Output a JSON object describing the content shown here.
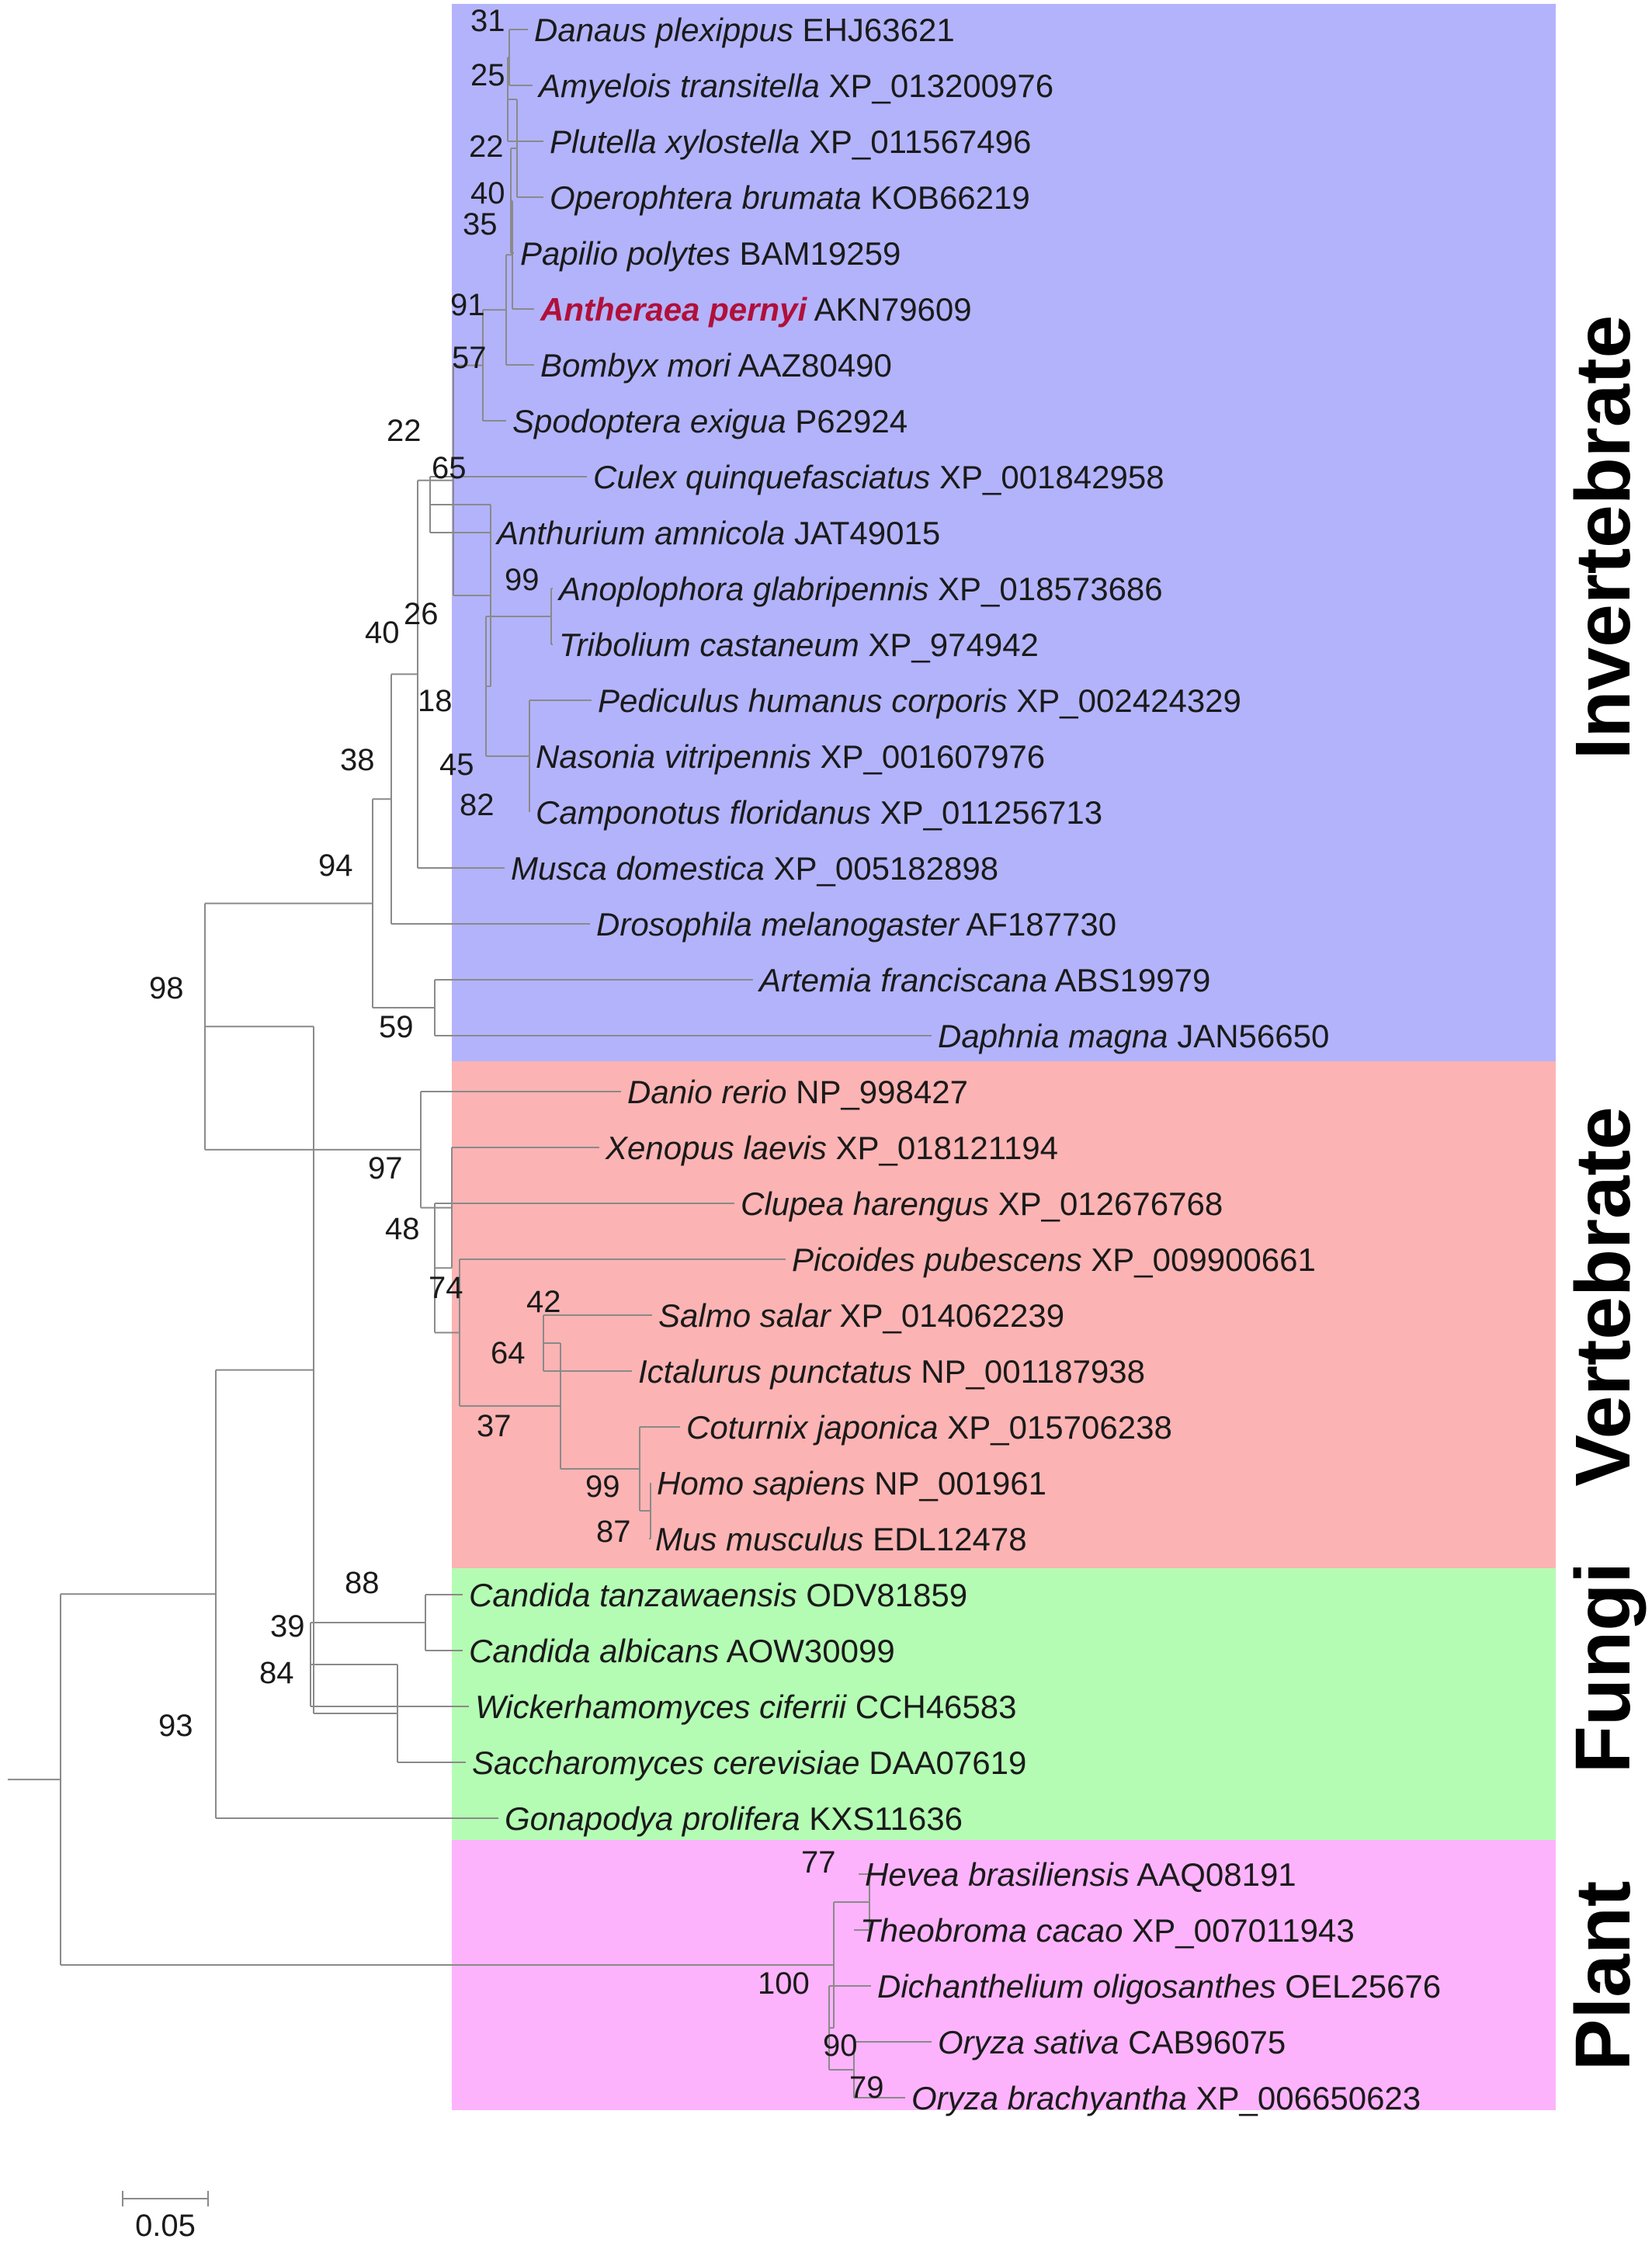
{
  "colors": {
    "invertebrate": "#b3b3fc",
    "vertebrate": "#fcb3b3",
    "fungi": "#b4fcb4",
    "plant": "#fcb3fc",
    "branch": "#8a8a8a",
    "text": "#1a1a1a",
    "highlight": "#b0103a"
  },
  "groups": [
    {
      "id": "invertebrate",
      "label": "Invertebrate"
    },
    {
      "id": "vertebrate",
      "label": "Vertebrate"
    },
    {
      "id": "fungi",
      "label": "Fungi"
    },
    {
      "id": "plant",
      "label": "Plant"
    }
  ],
  "leaves": [
    {
      "species": "Danaus plexippus",
      "accession": "EHJ63621",
      "group": "invertebrate"
    },
    {
      "species": "Amyelois transitella",
      "accession": "XP_013200976",
      "group": "invertebrate"
    },
    {
      "species": "Plutella xylostella",
      "accession": "XP_011567496",
      "group": "invertebrate"
    },
    {
      "species": "Operophtera brumata",
      "accession": "KOB66219",
      "group": "invertebrate"
    },
    {
      "species": "Papilio polytes",
      "accession": "BAM19259",
      "group": "invertebrate"
    },
    {
      "species": "Antheraea pernyi",
      "accession": "AKN79609",
      "group": "invertebrate",
      "highlight": true
    },
    {
      "species": "Bombyx mori",
      "accession": "AAZ80490",
      "group": "invertebrate"
    },
    {
      "species": "Spodoptera exigua",
      "accession": "P62924",
      "group": "invertebrate"
    },
    {
      "species": "Culex quinquefasciatus",
      "accession": "XP_001842958",
      "group": "invertebrate"
    },
    {
      "species": "Anthurium amnicola",
      "accession": "JAT49015",
      "group": "invertebrate"
    },
    {
      "species": "Anoplophora glabripennis",
      "accession": "XP_018573686",
      "group": "invertebrate"
    },
    {
      "species": "Tribolium castaneum",
      "accession": "XP_974942",
      "group": "invertebrate"
    },
    {
      "species": "Pediculus humanus corporis",
      "accession": "XP_002424329",
      "group": "invertebrate"
    },
    {
      "species": "Nasonia vitripennis",
      "accession": "XP_001607976",
      "group": "invertebrate"
    },
    {
      "species": "Camponotus floridanus",
      "accession": "XP_011256713",
      "group": "invertebrate"
    },
    {
      "species": "Musca domestica",
      "accession": "XP_005182898",
      "group": "invertebrate"
    },
    {
      "species": "Drosophila melanogaster",
      "accession": "AF187730",
      "group": "invertebrate"
    },
    {
      "species": "Artemia franciscana",
      "accession": "ABS19979",
      "group": "invertebrate"
    },
    {
      "species": "Daphnia magna",
      "accession": "JAN56650",
      "group": "invertebrate"
    },
    {
      "species": "Danio rerio",
      "accession": "NP_998427",
      "group": "vertebrate"
    },
    {
      "species": "Xenopus laevis",
      "accession": "XP_018121194",
      "group": "vertebrate"
    },
    {
      "species": "Clupea harengus",
      "accession": "XP_012676768",
      "group": "vertebrate"
    },
    {
      "species": "Picoides pubescens",
      "accession": "XP_009900661",
      "group": "vertebrate"
    },
    {
      "species": "Salmo salar",
      "accession": "XP_014062239",
      "group": "vertebrate"
    },
    {
      "species": "Ictalurus punctatus",
      "accession": "NP_001187938",
      "group": "vertebrate"
    },
    {
      "species": "Coturnix japonica",
      "accession": "XP_015706238",
      "group": "vertebrate"
    },
    {
      "species": "Homo sapiens",
      "accession": "NP_001961",
      "group": "vertebrate"
    },
    {
      "species": "Mus musculus",
      "accession": "EDL12478",
      "group": "vertebrate"
    },
    {
      "species": "Candida tanzawaensis",
      "accession": "ODV81859",
      "group": "fungi"
    },
    {
      "species": "Candida albicans",
      "accession": "AOW30099",
      "group": "fungi"
    },
    {
      "species": "Wickerhamomyces ciferrii",
      "accession": "CCH46583",
      "group": "fungi"
    },
    {
      "species": "Saccharomyces cerevisiae",
      "accession": "DAA07619",
      "group": "fungi"
    },
    {
      "species": "Gonapodya prolifera",
      "accession": "KXS11636",
      "group": "fungi"
    },
    {
      "species": "Hevea brasiliensis",
      "accession": "AAQ08191",
      "group": "plant"
    },
    {
      "species": "Theobroma cacao",
      "accession": "XP_007011943",
      "group": "plant"
    },
    {
      "species": "Dichanthelium oligosanthes",
      "accession": "OEL25676",
      "group": "plant"
    },
    {
      "species": "Oryza sativa",
      "accession": "CAB96075",
      "group": "plant"
    },
    {
      "species": "Oryza brachyantha",
      "accession": "XP_006650623",
      "group": "plant"
    }
  ],
  "bootstrap_values": [
    "31",
    "25",
    "22",
    "40",
    "35",
    "91",
    "57",
    "22",
    "65",
    "99",
    "26",
    "40",
    "18",
    "45",
    "82",
    "38",
    "94",
    "59",
    "98",
    "97",
    "48",
    "74",
    "42",
    "64",
    "37",
    "99",
    "87",
    "88",
    "39",
    "84",
    "93",
    "77",
    "100",
    "90",
    "79"
  ],
  "scale_bar": {
    "label": "0.05"
  }
}
